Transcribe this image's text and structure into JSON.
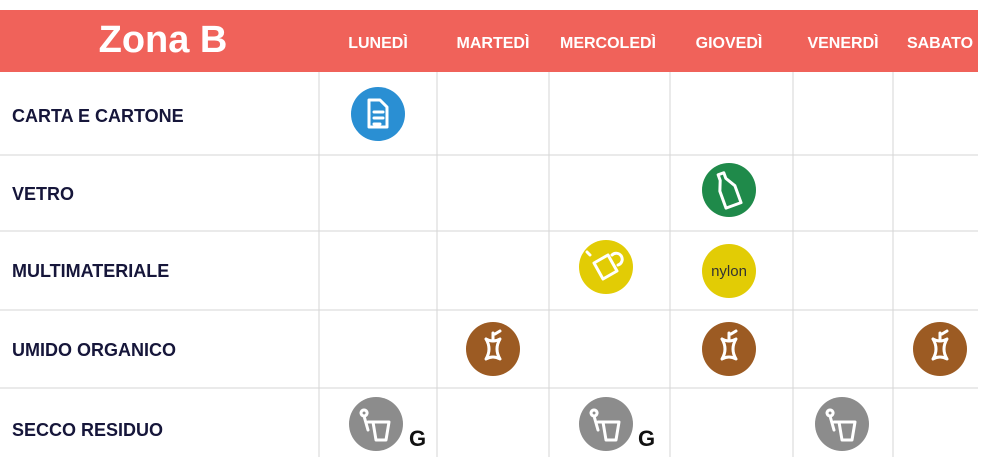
{
  "header": {
    "title": "Zona B",
    "days": [
      "LUNEDÌ",
      "MARTEDÌ",
      "MERCOLEDÌ",
      "GIOVEDÌ",
      "VENERDÌ",
      "SABATO"
    ]
  },
  "rows": [
    {
      "label": "CARTA E CARTONE"
    },
    {
      "label": "VETRO"
    },
    {
      "label": "MULTIMATERIALE",
      "badges": [
        "nylon"
      ]
    },
    {
      "label": "UMIDO ORGANICO"
    },
    {
      "label": "SECCO RESIDUO",
      "badges": [
        "G",
        "G"
      ]
    }
  ]
}
